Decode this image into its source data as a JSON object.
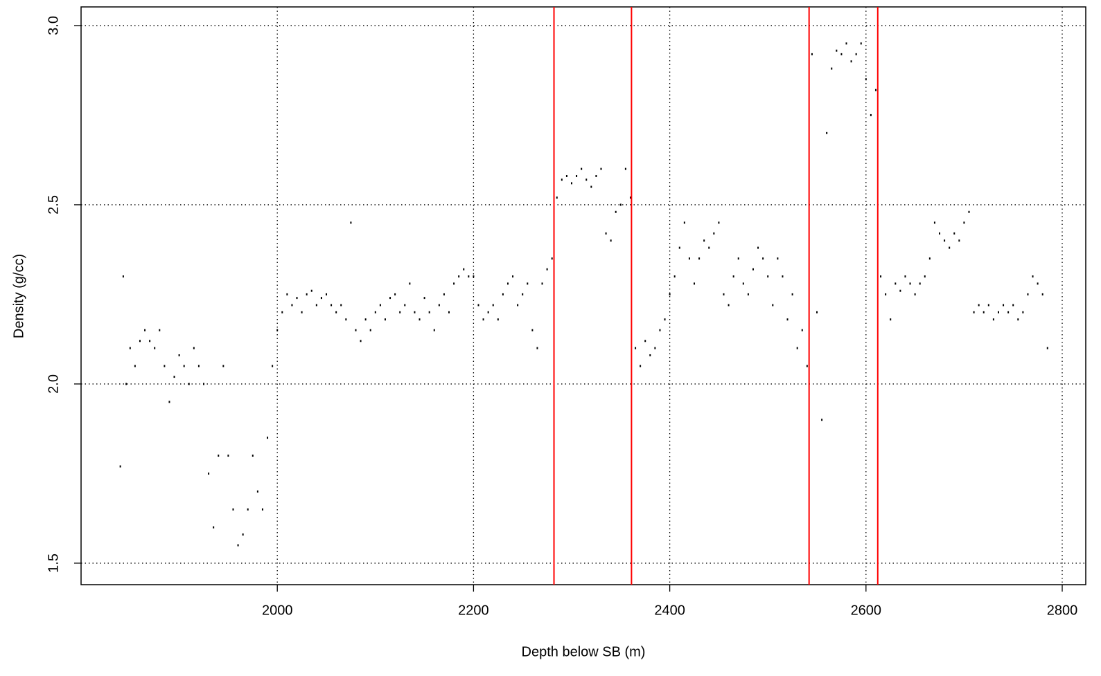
{
  "chart_data": {
    "type": "scatter",
    "xlabel": "Depth below SB (m)",
    "ylabel": "Density (g/cc)",
    "xlim": [
      1800,
      2824
    ],
    "ylim": [
      1.44,
      3.052
    ],
    "xticks": [
      2000,
      2200,
      2400,
      2600,
      2800
    ],
    "yticks": [
      1.5,
      {
        "value": 2,
        "label": "2.0"
      },
      2.5,
      {
        "value": 3,
        "label": "3.0"
      }
    ],
    "grid": true,
    "color": "#000000",
    "vlines": [
      2282,
      2361,
      2542,
      2612
    ],
    "vline_color": "#ff0000",
    "x": [
      1840,
      1843,
      1846,
      1850,
      1855,
      1860,
      1865,
      1870,
      1875,
      1880,
      1885,
      1890,
      1895,
      1900,
      1905,
      1910,
      1915,
      1920,
      1925,
      1930,
      1935,
      1940,
      1945,
      1950,
      1955,
      1960,
      1965,
      1970,
      1975,
      1980,
      1985,
      1990,
      1995,
      2000,
      2005,
      2010,
      2015,
      2020,
      2025,
      2030,
      2035,
      2040,
      2045,
      2050,
      2055,
      2060,
      2065,
      2070,
      2075,
      2080,
      2085,
      2090,
      2095,
      2100,
      2105,
      2110,
      2115,
      2120,
      2125,
      2130,
      2135,
      2140,
      2145,
      2150,
      2155,
      2160,
      2165,
      2170,
      2175,
      2180,
      2185,
      2190,
      2195,
      2200,
      2205,
      2210,
      2215,
      2220,
      2225,
      2230,
      2235,
      2240,
      2245,
      2250,
      2255,
      2260,
      2265,
      2270,
      2275,
      2280,
      2285,
      2290,
      2295,
      2300,
      2305,
      2310,
      2315,
      2320,
      2325,
      2330,
      2335,
      2340,
      2345,
      2350,
      2355,
      2360,
      2365,
      2370,
      2375,
      2380,
      2385,
      2390,
      2395,
      2400,
      2405,
      2410,
      2415,
      2420,
      2425,
      2430,
      2435,
      2440,
      2445,
      2450,
      2455,
      2460,
      2465,
      2470,
      2475,
      2480,
      2485,
      2490,
      2495,
      2500,
      2505,
      2510,
      2515,
      2520,
      2525,
      2530,
      2535,
      2540,
      2545,
      2550,
      2555,
      2560,
      2565,
      2570,
      2575,
      2580,
      2585,
      2590,
      2595,
      2600,
      2605,
      2610,
      2615,
      2620,
      2625,
      2630,
      2635,
      2640,
      2645,
      2650,
      2655,
      2660,
      2665,
      2670,
      2675,
      2680,
      2685,
      2690,
      2695,
      2700,
      2705,
      2710,
      2715,
      2720,
      2725,
      2730,
      2735,
      2740,
      2745,
      2750,
      2755,
      2760,
      2765,
      2770,
      2775,
      2780,
      2785
    ],
    "values": [
      1.77,
      2.3,
      2.0,
      2.1,
      2.05,
      2.12,
      2.15,
      2.12,
      2.1,
      2.15,
      2.05,
      1.95,
      2.02,
      2.08,
      2.05,
      2.0,
      2.1,
      2.05,
      2.0,
      1.75,
      1.6,
      1.8,
      2.05,
      1.8,
      1.65,
      1.55,
      1.58,
      1.65,
      1.8,
      1.7,
      1.65,
      1.85,
      2.05,
      2.15,
      2.2,
      2.25,
      2.22,
      2.24,
      2.2,
      2.25,
      2.26,
      2.22,
      2.24,
      2.25,
      2.22,
      2.2,
      2.22,
      2.18,
      2.45,
      2.15,
      2.12,
      2.18,
      2.15,
      2.2,
      2.22,
      2.18,
      2.24,
      2.25,
      2.2,
      2.22,
      2.28,
      2.2,
      2.18,
      2.24,
      2.2,
      2.15,
      2.22,
      2.25,
      2.2,
      2.28,
      2.3,
      2.32,
      2.3,
      2.3,
      2.22,
      2.18,
      2.2,
      2.22,
      2.18,
      2.25,
      2.28,
      2.3,
      2.22,
      2.25,
      2.28,
      2.15,
      2.1,
      2.28,
      2.32,
      2.35,
      2.52,
      2.57,
      2.58,
      2.56,
      2.58,
      2.6,
      2.57,
      2.55,
      2.58,
      2.6,
      2.42,
      2.4,
      2.48,
      2.5,
      2.6,
      2.52,
      2.1,
      2.05,
      2.12,
      2.08,
      2.1,
      2.15,
      2.18,
      2.25,
      2.3,
      2.38,
      2.45,
      2.35,
      2.28,
      2.35,
      2.4,
      2.38,
      2.42,
      2.45,
      2.25,
      2.22,
      2.3,
      2.35,
      2.28,
      2.25,
      2.32,
      2.38,
      2.35,
      2.3,
      2.22,
      2.35,
      2.3,
      2.18,
      2.25,
      2.1,
      2.15,
      2.05,
      2.92,
      2.2,
      1.9,
      2.7,
      2.88,
      2.93,
      2.92,
      2.95,
      2.9,
      2.92,
      2.95,
      2.85,
      2.75,
      2.82,
      2.3,
      2.25,
      2.18,
      2.28,
      2.26,
      2.3,
      2.28,
      2.25,
      2.28,
      2.3,
      2.35,
      2.45,
      2.42,
      2.4,
      2.38,
      2.42,
      2.4,
      2.45,
      2.48,
      2.2,
      2.22,
      2.2,
      2.22,
      2.18,
      2.2,
      2.22,
      2.2,
      2.22,
      2.18,
      2.2,
      2.25,
      2.3,
      2.28,
      2.25,
      2.1
    ]
  }
}
